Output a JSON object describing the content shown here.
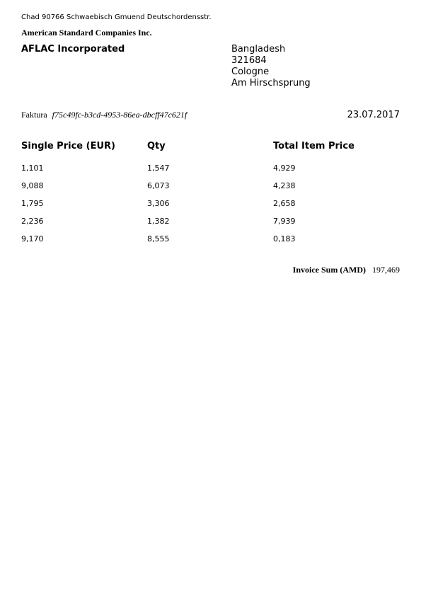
{
  "sender": {
    "address_line": "Chad 90766 Schwaebisch Gmuend Deutschordensstr.",
    "company": "American Standard Companies Inc."
  },
  "recipient": {
    "name": "AFLAC Incorporated",
    "address": [
      "Bangladesh",
      "321684",
      "Cologne",
      "Am Hirschsprung"
    ]
  },
  "invoice": {
    "label": "Faktura",
    "id": "f75c49fc-b3cd-4953-86ea-dbcff47c621f",
    "date": "23.07.2017"
  },
  "table": {
    "headers": [
      "Single Price (EUR)",
      "Qty",
      "Total Item Price"
    ],
    "rows": [
      [
        "1,101",
        "1,547",
        "4,929"
      ],
      [
        "9,088",
        "6,073",
        "4,238"
      ],
      [
        "1,795",
        "3,306",
        "2,658"
      ],
      [
        "2,236",
        "1,382",
        "7,939"
      ],
      [
        "9,170",
        "8,555",
        "0,183"
      ]
    ]
  },
  "total": {
    "label": "Invoice Sum (AMD)",
    "value": "197,469"
  }
}
